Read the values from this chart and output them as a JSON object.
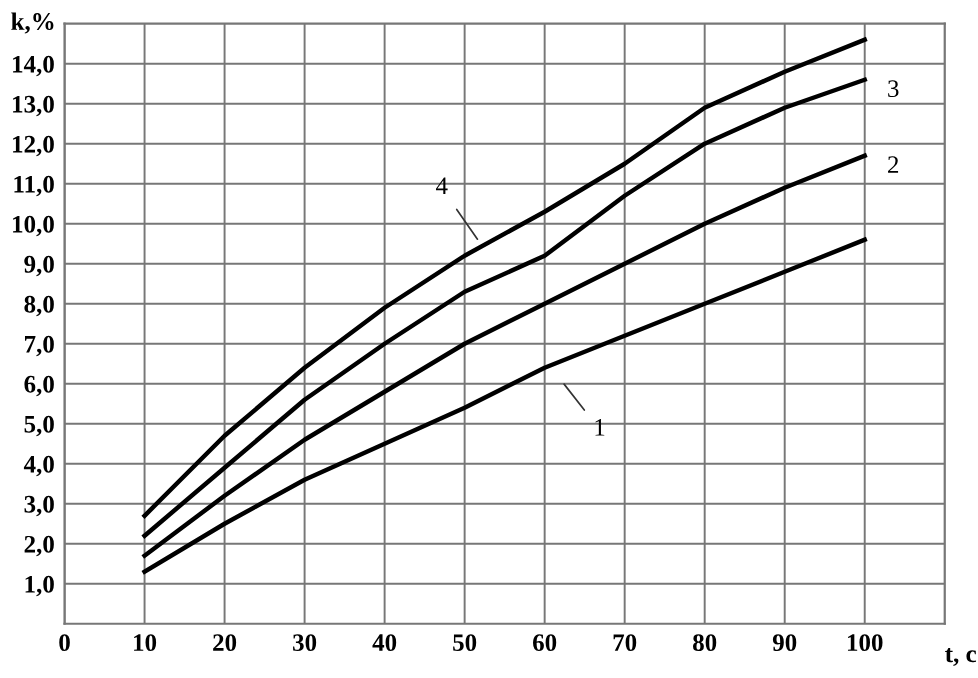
{
  "chart_data": {
    "type": "line",
    "xlabel": "t, c",
    "ylabel": "k,%",
    "x": [
      10,
      20,
      30,
      40,
      50,
      60,
      70,
      80,
      90,
      100
    ],
    "series": [
      {
        "name": "4",
        "color": "#000000",
        "values": [
          2.7,
          4.7,
          6.4,
          7.9,
          9.2,
          10.3,
          11.5,
          12.9,
          13.8,
          14.6
        ]
      },
      {
        "name": "3",
        "color": "#000000",
        "values": [
          2.2,
          3.9,
          5.6,
          7.0,
          8.3,
          9.2,
          10.7,
          12.0,
          12.9,
          13.6
        ]
      },
      {
        "name": "2",
        "color": "#000000",
        "values": [
          1.7,
          3.2,
          4.6,
          5.8,
          7.0,
          8.0,
          9.0,
          10.0,
          10.9,
          11.7
        ]
      },
      {
        "name": "1",
        "color": "#000000",
        "values": [
          1.3,
          2.5,
          3.6,
          4.5,
          5.4,
          6.4,
          7.2,
          8.0,
          8.8,
          9.6
        ]
      }
    ],
    "xlim": [
      0,
      110
    ],
    "xticks": [
      0,
      10,
      20,
      30,
      40,
      50,
      60,
      70,
      80,
      90,
      100
    ],
    "ylim": [
      0,
      15
    ],
    "yticks": [
      {
        "value": 1,
        "label": "1,0"
      },
      {
        "value": 2,
        "label": "2,0"
      },
      {
        "value": 3,
        "label": "3,0"
      },
      {
        "value": 4,
        "label": "4,0"
      },
      {
        "value": 5,
        "label": "5,0"
      },
      {
        "value": 6,
        "label": "6,0"
      },
      {
        "value": 7,
        "label": "7,0"
      },
      {
        "value": 8,
        "label": "8,0"
      },
      {
        "value": 9,
        "label": "9,0"
      },
      {
        "value": 10,
        "label": "10,0"
      },
      {
        "value": 11,
        "label": "11,0"
      },
      {
        "value": 12,
        "label": "12,0"
      },
      {
        "value": 13,
        "label": "13,0"
      },
      {
        "value": 14,
        "label": "14,0"
      }
    ],
    "grid": true,
    "legend": false,
    "marker": "none",
    "line_style": "solid"
  }
}
